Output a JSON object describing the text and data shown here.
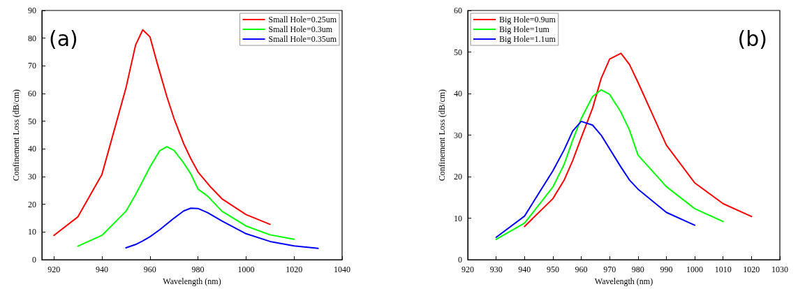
{
  "chart_data": [
    {
      "type": "line",
      "xlabel": "Wavelength (nm)",
      "ylabel": "Confinement Loss (dB/cm)",
      "annotations": [
        "(a)"
      ],
      "xlim": [
        915,
        1040
      ],
      "xticks": [
        920,
        940,
        960,
        980,
        1000,
        1020,
        1040
      ],
      "ylim": [
        0,
        90
      ],
      "yticks": [
        0,
        10,
        20,
        30,
        40,
        50,
        60,
        70,
        80,
        90
      ],
      "grid": false,
      "legend": "top right",
      "marker": "none",
      "line_style": "solid",
      "series": [
        {
          "name": "Small Hole=0.25um",
          "color": "#ff0000",
          "x": [
            920,
            930,
            940,
            950,
            954,
            957,
            960,
            963,
            967,
            970,
            974,
            977,
            980,
            985,
            990,
            1000,
            1010
          ],
          "values": [
            8.8,
            15.5,
            30.8,
            62,
            77.5,
            83,
            80.5,
            71,
            59,
            51,
            42,
            36.5,
            31.7,
            26.5,
            22,
            16.3,
            12.8
          ]
        },
        {
          "name": "Small Hole=0.3um",
          "color": "#00ff00",
          "x": [
            930,
            940,
            950,
            954,
            960,
            964,
            967,
            970,
            974,
            977,
            980,
            984,
            990,
            1000,
            1010,
            1020
          ],
          "values": [
            4.9,
            8.8,
            17.5,
            23.5,
            33.5,
            39.3,
            40.8,
            39.5,
            35,
            31,
            25.5,
            23,
            17.5,
            12.2,
            9,
            7.4
          ]
        },
        {
          "name": "Small Hole=0.35um",
          "color": "#0000ff",
          "x": [
            950,
            954,
            957,
            960,
            964,
            970,
            974,
            977,
            980,
            984,
            990,
            1000,
            1010,
            1020,
            1030
          ],
          "values": [
            4.3,
            5.5,
            6.8,
            8.3,
            10.8,
            15,
            17.6,
            18.6,
            18.5,
            17,
            14,
            9.4,
            6.6,
            5,
            4.1
          ]
        }
      ]
    },
    {
      "type": "line",
      "xlabel": "Wavelength (nm)",
      "ylabel": "Confinement Loss (dB/cm)",
      "annotations": [
        "(b)"
      ],
      "xlim": [
        920,
        1030
      ],
      "xticks": [
        920,
        930,
        940,
        950,
        960,
        970,
        980,
        990,
        1000,
        1010,
        1020,
        1030
      ],
      "ylim": [
        0,
        60
      ],
      "yticks": [
        0,
        10,
        20,
        30,
        40,
        50,
        60
      ],
      "grid": false,
      "legend": "top left",
      "marker": "none",
      "line_style": "solid",
      "series": [
        {
          "name": "Big Hole=0.9um",
          "color": "#ff0000",
          "x": [
            940,
            950,
            954,
            957,
            960,
            964,
            967,
            970,
            974,
            977,
            980,
            990,
            1000,
            1010,
            1020
          ],
          "values": [
            8,
            14.7,
            19.2,
            23.9,
            29.4,
            36.5,
            43.6,
            48.3,
            49.7,
            47,
            42.7,
            27.6,
            18.5,
            13.5,
            10.4
          ]
        },
        {
          "name": "Big Hole=1um",
          "color": "#00ff00",
          "x": [
            930,
            940,
            950,
            954,
            957,
            960,
            964,
            967,
            970,
            974,
            977,
            980,
            990,
            1000,
            1010
          ],
          "values": [
            4.9,
            8.8,
            17.5,
            23,
            28.8,
            34,
            39.3,
            40.9,
            39.8,
            35.5,
            31.2,
            25.2,
            17.6,
            12.3,
            9.2
          ]
        },
        {
          "name": "Big Hole=1.1um",
          "color": "#0000ff",
          "x": [
            930,
            940,
            950,
            954,
            957,
            960,
            964,
            967,
            974,
            977,
            980,
            990,
            1000
          ],
          "values": [
            5.4,
            10.5,
            21.4,
            26.5,
            31,
            33.3,
            32.4,
            30,
            22.3,
            19.2,
            17,
            11.4,
            8.3
          ]
        }
      ]
    }
  ]
}
